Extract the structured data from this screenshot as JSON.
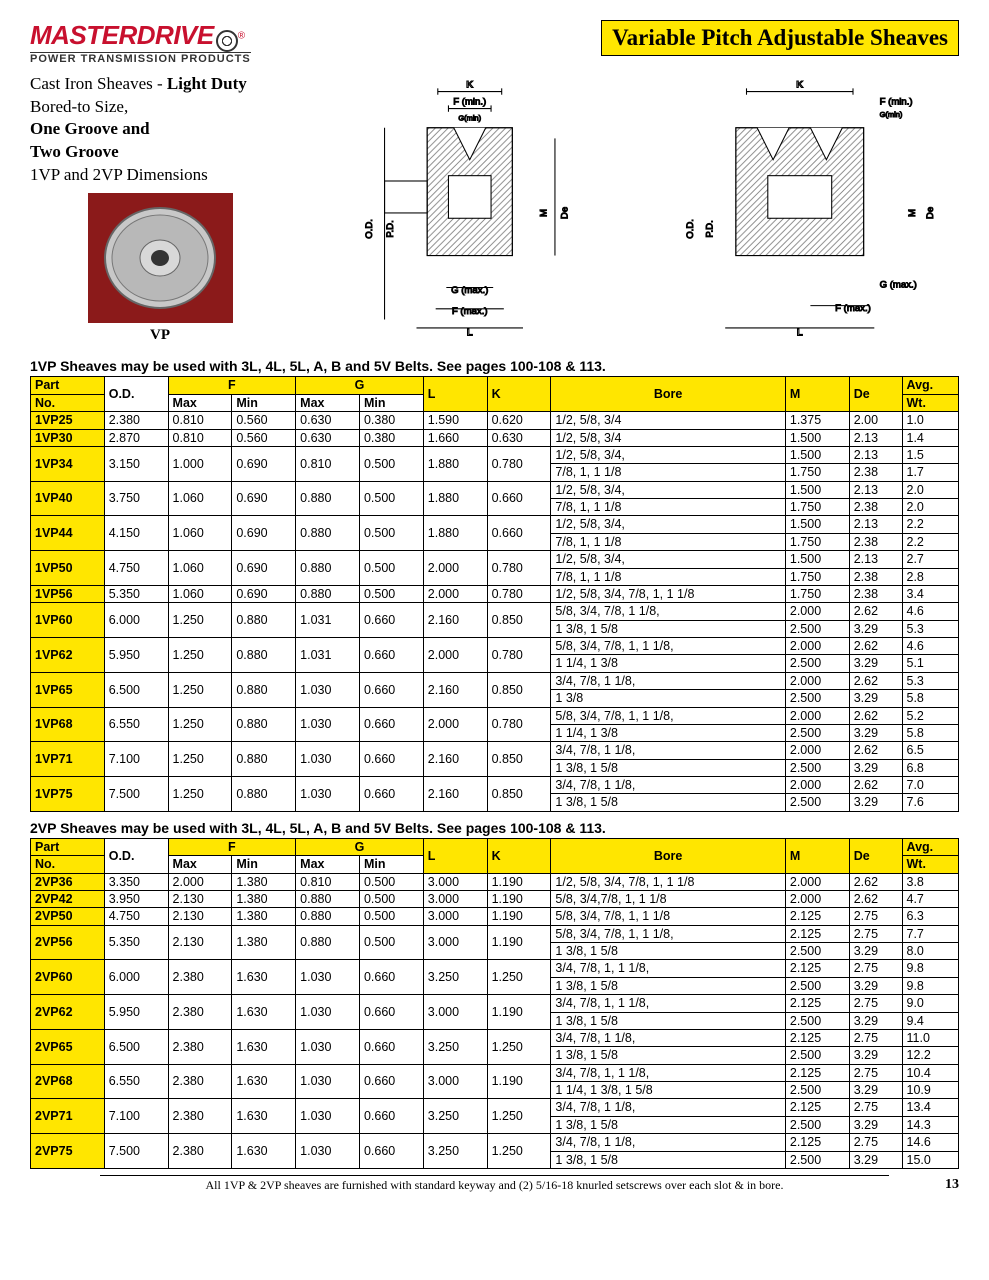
{
  "brand": {
    "name": "MASTERDRIVE",
    "reg": "®",
    "tagline": "POWER TRANSMISSION PRODUCTS"
  },
  "page_title": "Variable Pitch Adjustable Sheaves",
  "description": {
    "line1a": "Cast Iron Sheaves - ",
    "line1b": "Light Duty",
    "line2": "Bored-to Size,",
    "line3": "One Groove and",
    "line4": "Two Groove",
    "line5": "1VP and 2VP  Dimensions"
  },
  "photo_caption": "VP",
  "diagram_labels": {
    "K": "K",
    "Fmin": "F (min.)",
    "Gmin": "G(min)",
    "OD": "O.D.",
    "PD": "P.D.",
    "M": "M",
    "De": "De",
    "Gmax": "G (max.)",
    "Fmax": "F (max.)",
    "L": "L"
  },
  "section1_note": "1VP Sheaves may be used with 3L, 4L, 5L, A, B and 5V Belts. See pages 100-108 & 113.",
  "section2_note": "2VP Sheaves may be used with 3L, 4L, 5L, A, B and 5V Belts. See pages 100-108 & 113.",
  "headers": {
    "part": "Part",
    "no": "No.",
    "od": "O.D.",
    "F": "F",
    "max": "Max",
    "min": "Min",
    "G": "G",
    "L": "L",
    "K": "K",
    "bore": "Bore",
    "M": "M",
    "de": "De",
    "wt": "Avg.",
    "wt2": "Wt."
  },
  "table1": [
    {
      "pn": "1VP25",
      "od": "2.380",
      "fmax": "0.810",
      "fmin": "0.560",
      "gmax": "0.630",
      "gmin": "0.380",
      "l": "1.590",
      "k": "0.620",
      "bore": "1/2, 5/8, 3/4",
      "m": "1.375",
      "de": "2.00",
      "wt": "1.0"
    },
    {
      "pn": "1VP30",
      "od": "2.870",
      "fmax": "0.810",
      "fmin": "0.560",
      "gmax": "0.630",
      "gmin": "0.380",
      "l": "1.660",
      "k": "0.630",
      "bore": "1/2, 5/8, 3/4",
      "m": "1.500",
      "de": "2.13",
      "wt": "1.4"
    },
    {
      "pn": "1VP34",
      "od": "3.150",
      "fmax": "1.000",
      "fmin": "0.690",
      "gmax": "0.810",
      "gmin": "0.500",
      "l": "1.880",
      "k": "0.780",
      "bore": "1/2, 5/8, 3/4,",
      "m": "1.500",
      "de": "2.13",
      "wt": "1.5",
      "cont": [
        {
          "bore": "7/8, 1,  1 1/8",
          "m": "1.750",
          "de": "2.38",
          "wt": "1.7"
        }
      ]
    },
    {
      "pn": "1VP40",
      "od": "3.750",
      "fmax": "1.060",
      "fmin": "0.690",
      "gmax": "0.880",
      "gmin": "0.500",
      "l": "1.880",
      "k": "0.660",
      "bore": "1/2, 5/8, 3/4,",
      "m": "1.500",
      "de": "2.13",
      "wt": "2.0",
      "cont": [
        {
          "bore": "7/8, 1,  1 1/8",
          "m": "1.750",
          "de": "2.38",
          "wt": "2.0"
        }
      ]
    },
    {
      "pn": "1VP44",
      "od": "4.150",
      "fmax": "1.060",
      "fmin": "0.690",
      "gmax": "0.880",
      "gmin": "0.500",
      "l": "1.880",
      "k": "0.660",
      "bore": "1/2, 5/8, 3/4,",
      "m": "1.500",
      "de": "2.13",
      "wt": "2.2",
      "cont": [
        {
          "bore": "7/8, 1,  1 1/8",
          "m": "1.750",
          "de": "2.38",
          "wt": "2.2"
        }
      ]
    },
    {
      "pn": "1VP50",
      "od": "4.750",
      "fmax": "1.060",
      "fmin": "0.690",
      "gmax": "0.880",
      "gmin": "0.500",
      "l": "2.000",
      "k": "0.780",
      "bore": "1/2, 5/8, 3/4,",
      "m": "1.500",
      "de": "2.13",
      "wt": "2.7",
      "cont": [
        {
          "bore": "7/8, 1,  1 1/8",
          "m": "1.750",
          "de": "2.38",
          "wt": "2.8"
        }
      ]
    },
    {
      "pn": "1VP56",
      "od": "5.350",
      "fmax": "1.060",
      "fmin": "0.690",
      "gmax": "0.880",
      "gmin": "0.500",
      "l": "2.000",
      "k": "0.780",
      "bore": "1/2, 5/8, 3/4, 7/8, 1, 1 1/8",
      "m": "1.750",
      "de": "2.38",
      "wt": "3.4"
    },
    {
      "pn": "1VP60",
      "od": "6.000",
      "fmax": "1.250",
      "fmin": "0.880",
      "gmax": "1.031",
      "gmin": "0.660",
      "l": "2.160",
      "k": "0.850",
      "bore": "5/8, 3/4, 7/8, 1 1/8,",
      "m": "2.000",
      "de": "2.62",
      "wt": "4.6",
      "cont": [
        {
          "bore": "1 3/8, 1 5/8",
          "m": "2.500",
          "de": "3.29",
          "wt": "5.3"
        }
      ]
    },
    {
      "pn": "1VP62",
      "od": "5.950",
      "fmax": "1.250",
      "fmin": "0.880",
      "gmax": "1.031",
      "gmin": "0.660",
      "l": "2.000",
      "k": "0.780",
      "bore": "5/8, 3/4, 7/8, 1, 1 1/8,",
      "m": "2.000",
      "de": "2.62",
      "wt": "4.6",
      "cont": [
        {
          "bore": "1 1/4, 1 3/8",
          "m": "2.500",
          "de": "3.29",
          "wt": "5.1"
        }
      ]
    },
    {
      "pn": "1VP65",
      "od": "6.500",
      "fmax": "1.250",
      "fmin": "0.880",
      "gmax": "1.030",
      "gmin": "0.660",
      "l": "2.160",
      "k": "0.850",
      "bore": "3/4, 7/8, 1 1/8,",
      "m": "2.000",
      "de": "2.62",
      "wt": "5.3",
      "cont": [
        {
          "bore": "1 3/8",
          "m": "2.500",
          "de": "3.29",
          "wt": "5.8"
        }
      ]
    },
    {
      "pn": "1VP68",
      "od": "6.550",
      "fmax": "1.250",
      "fmin": "0.880",
      "gmax": "1.030",
      "gmin": "0.660",
      "l": "2.000",
      "k": "0.780",
      "bore": "5/8, 3/4, 7/8, 1, 1 1/8,",
      "m": "2.000",
      "de": "2.62",
      "wt": "5.2",
      "cont": [
        {
          "bore": "1 1/4, 1 3/8",
          "m": "2.500",
          "de": "3.29",
          "wt": "5.8"
        }
      ]
    },
    {
      "pn": "1VP71",
      "od": "7.100",
      "fmax": "1.250",
      "fmin": "0.880",
      "gmax": "1.030",
      "gmin": "0.660",
      "l": "2.160",
      "k": "0.850",
      "bore": "3/4, 7/8, 1 1/8,",
      "m": "2.000",
      "de": "2.62",
      "wt": "6.5",
      "cont": [
        {
          "bore": "1 3/8, 1 5/8",
          "m": "2.500",
          "de": "3.29",
          "wt": "6.8"
        }
      ]
    },
    {
      "pn": "1VP75",
      "od": "7.500",
      "fmax": "1.250",
      "fmin": "0.880",
      "gmax": "1.030",
      "gmin": "0.660",
      "l": "2.160",
      "k": "0.850",
      "bore": "3/4, 7/8, 1 1/8,",
      "m": "2.000",
      "de": "2.62",
      "wt": "7.0",
      "cont": [
        {
          "bore": "1 3/8, 1 5/8",
          "m": "2.500",
          "de": "3.29",
          "wt": "7.6"
        }
      ]
    }
  ],
  "table2": [
    {
      "pn": "2VP36",
      "od": "3.350",
      "fmax": "2.000",
      "fmin": "1.380",
      "gmax": "0.810",
      "gmin": "0.500",
      "l": "3.000",
      "k": "1.190",
      "bore": "1/2, 5/8, 3/4, 7/8, 1, 1 1/8",
      "m": "2.000",
      "de": "2.62",
      "wt": "3.8"
    },
    {
      "pn": "2VP42",
      "od": "3.950",
      "fmax": "2.130",
      "fmin": "1.380",
      "gmax": "0.880",
      "gmin": "0.500",
      "l": "3.000",
      "k": "1.190",
      "bore": "5/8,  3/4,7/8, 1, 1 1/8",
      "m": "2.000",
      "de": "2.62",
      "wt": "4.7"
    },
    {
      "pn": "2VP50",
      "od": "4.750",
      "fmax": "2.130",
      "fmin": "1.380",
      "gmax": "0.880",
      "gmin": "0.500",
      "l": "3.000",
      "k": "1.190",
      "bore": "5/8, 3/4, 7/8, 1, 1 1/8",
      "m": "2.125",
      "de": "2.75",
      "wt": "6.3"
    },
    {
      "pn": "2VP56",
      "od": "5.350",
      "fmax": "2.130",
      "fmin": "1.380",
      "gmax": "0.880",
      "gmin": "0.500",
      "l": "3.000",
      "k": "1.190",
      "bore": "5/8, 3/4, 7/8, 1, 1 1/8,",
      "m": "2.125",
      "de": "2.75",
      "wt": "7.7",
      "cont": [
        {
          "bore": "1 3/8, 1 5/8",
          "m": "2.500",
          "de": "3.29",
          "wt": "8.0"
        }
      ]
    },
    {
      "pn": "2VP60",
      "od": "6.000",
      "fmax": "2.380",
      "fmin": "1.630",
      "gmax": "1.030",
      "gmin": "0.660",
      "l": "3.250",
      "k": "1.250",
      "bore": "3/4, 7/8, 1, 1 1/8,",
      "m": "2.125",
      "de": "2.75",
      "wt": "9.8",
      "cont": [
        {
          "bore": "1 3/8, 1 5/8",
          "m": "2.500",
          "de": "3.29",
          "wt": "9.8"
        }
      ]
    },
    {
      "pn": "2VP62",
      "od": "5.950",
      "fmax": "2.380",
      "fmin": "1.630",
      "gmax": "1.030",
      "gmin": "0.660",
      "l": "3.000",
      "k": "1.190",
      "bore": "3/4, 7/8, 1, 1 1/8,",
      "m": "2.125",
      "de": "2.75",
      "wt": "9.0",
      "cont": [
        {
          "bore": "1 3/8, 1 5/8",
          "m": "2.500",
          "de": "3.29",
          "wt": "9.4"
        }
      ]
    },
    {
      "pn": "2VP65",
      "od": "6.500",
      "fmax": "2.380",
      "fmin": "1.630",
      "gmax": "1.030",
      "gmin": "0.660",
      "l": "3.250",
      "k": "1.250",
      "bore": "3/4, 7/8, 1 1/8,",
      "m": "2.125",
      "de": "2.75",
      "wt": "11.0",
      "cont": [
        {
          "bore": "1 3/8, 1 5/8",
          "m": "2.500",
          "de": "3.29",
          "wt": "12.2"
        }
      ]
    },
    {
      "pn": "2VP68",
      "od": "6.550",
      "fmax": "2.380",
      "fmin": "1.630",
      "gmax": "1.030",
      "gmin": "0.660",
      "l": "3.000",
      "k": "1.190",
      "bore": "3/4, 7/8, 1, 1 1/8,",
      "m": "2.125",
      "de": "2.75",
      "wt": "10.4",
      "cont": [
        {
          "bore": "1 1/4, 1 3/8, 1 5/8",
          "m": "2.500",
          "de": "3.29",
          "wt": "10.9"
        }
      ]
    },
    {
      "pn": "2VP71",
      "od": "7.100",
      "fmax": "2.380",
      "fmin": "1.630",
      "gmax": "1.030",
      "gmin": "0.660",
      "l": "3.250",
      "k": "1.250",
      "bore": "3/4, 7/8, 1 1/8,",
      "m": "2.125",
      "de": "2.75",
      "wt": "13.4",
      "cont": [
        {
          "bore": "1 3/8, 1 5/8",
          "m": "2.500",
          "de": "3.29",
          "wt": "14.3"
        }
      ]
    },
    {
      "pn": "2VP75",
      "od": "7.500",
      "fmax": "2.380",
      "fmin": "1.630",
      "gmax": "1.030",
      "gmin": "0.660",
      "l": "3.250",
      "k": "1.250",
      "bore": "3/4, 7/8, 1 1/8,",
      "m": "2.125",
      "de": "2.75",
      "wt": "14.6",
      "cont": [
        {
          "bore": "1 3/8, 1 5/8",
          "m": "2.500",
          "de": "3.29",
          "wt": "15.0"
        }
      ]
    }
  ],
  "footer_note": "All 1VP & 2VP sheaves are furnished with standard keyway and (2) 5/16-18 knurled setscrews over each slot & in bore.",
  "page_number": "13",
  "colors": {
    "highlight": "#ffe600",
    "brand_red": "#c8102e",
    "border": "#000000"
  }
}
